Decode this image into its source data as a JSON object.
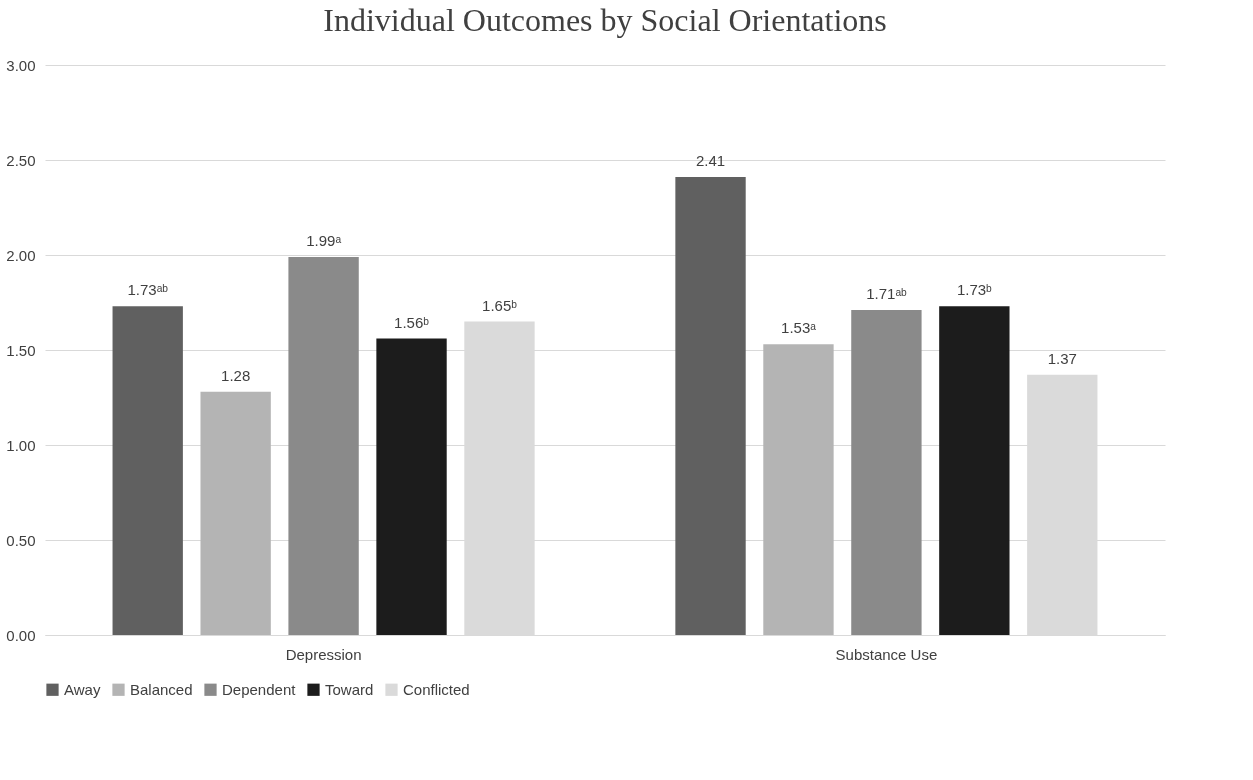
{
  "chart_data": {
    "type": "bar",
    "title": "Individual Outcomes by Social Orientations",
    "categories": [
      "Depression",
      "Substance Use"
    ],
    "series": [
      {
        "name": "Away",
        "color": "#606060",
        "values": [
          1.73,
          2.41
        ],
        "value_labels": [
          "1.73ᵃᵇ",
          "2.41"
        ]
      },
      {
        "name": "Balanced",
        "color": "#b4b4b4",
        "values": [
          1.28,
          1.53
        ],
        "value_labels": [
          "1.28",
          "1.53ᵃ"
        ]
      },
      {
        "name": "Dependent",
        "color": "#8a8a8a",
        "values": [
          1.99,
          1.71
        ],
        "value_labels": [
          "1.99ᵃ",
          "1.71ᵃᵇ"
        ]
      },
      {
        "name": "Toward",
        "color": "#1c1c1c",
        "values": [
          1.56,
          1.73
        ],
        "value_labels": [
          "1.56ᵇ",
          "1.73ᵇ"
        ]
      },
      {
        "name": "Conflicted",
        "color": "#dadada",
        "values": [
          1.65,
          1.37
        ],
        "value_labels": [
          "1.65ᵇ",
          "1.37"
        ]
      }
    ],
    "ylim": [
      0,
      3
    ],
    "yticks": [
      {
        "value": 0,
        "label": "0.00"
      },
      {
        "value": 0.5,
        "label": "0.50"
      },
      {
        "value": 1,
        "label": "1.00"
      },
      {
        "value": 1.5,
        "label": "1.50"
      },
      {
        "value": 2,
        "label": "2.00"
      },
      {
        "value": 2.5,
        "label": "2.50"
      },
      {
        "value": 3,
        "label": "3.00"
      }
    ],
    "grid": "y",
    "legend": "bottom"
  }
}
